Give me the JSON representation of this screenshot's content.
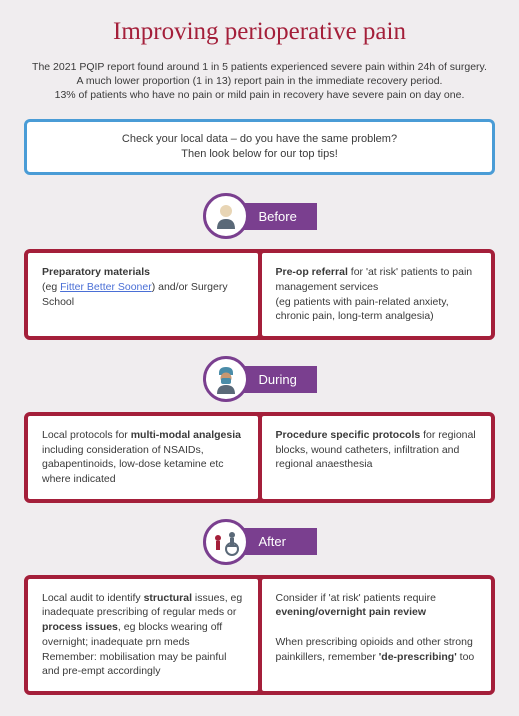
{
  "title": "Improving perioperative pain",
  "intro_line1": "The 2021 PQIP report found around 1 in 5 patients experienced severe pain within 24h of surgery.",
  "intro_line2": "A much lower proportion (1 in 13) report pain in the immediate recovery period.",
  "intro_line3": "13% of patients who have no pain or mild pain in recovery have severe pain on day one.",
  "callout_line1": "Check your local data – do you have the same problem?",
  "callout_line2": "Then look below for our top tips!",
  "colors": {
    "accent": "#a41f3a",
    "purple": "#7a3f8f",
    "blue_border": "#4a9cd6",
    "link": "#4a6fd6",
    "bg": "#f0edef"
  },
  "stages": [
    {
      "label": "Before",
      "icon": "person",
      "left": "<b>Preparatory materials</b><br>(eg <span class='link'>Fitter Better Sooner</span>) and/or Surgery School",
      "right": "<b>Pre-op referral</b> for 'at risk' patients to pain management services<br>(eg patients with pain-related anxiety, chronic pain, long-term analgesia)"
    },
    {
      "label": "During",
      "icon": "surgeon",
      "left": "Local protocols for <b>multi-modal analgesia</b> including consideration of NSAIDs, gabapentinoids, low-dose ketamine etc where indicated",
      "right": "<b>Procedure specific protocols</b> for regional blocks, wound catheters, infiltration and regional anaesthesia"
    },
    {
      "label": "After",
      "icon": "wheelchair",
      "left": "Local audit to identify <b>structural</b> issues, eg inadequate prescribing of regular meds or <b>process issues</b>, eg blocks wearing off overnight; inadequate prn meds<br>Remember: mobilisation may be painful and pre-empt accordingly",
      "right": "Consider if 'at risk' patients require <b>evening/overnight pain review</b><br><br>When prescribing opioids and other strong painkillers, remember <b>'de-prescribing'</b> too"
    }
  ]
}
